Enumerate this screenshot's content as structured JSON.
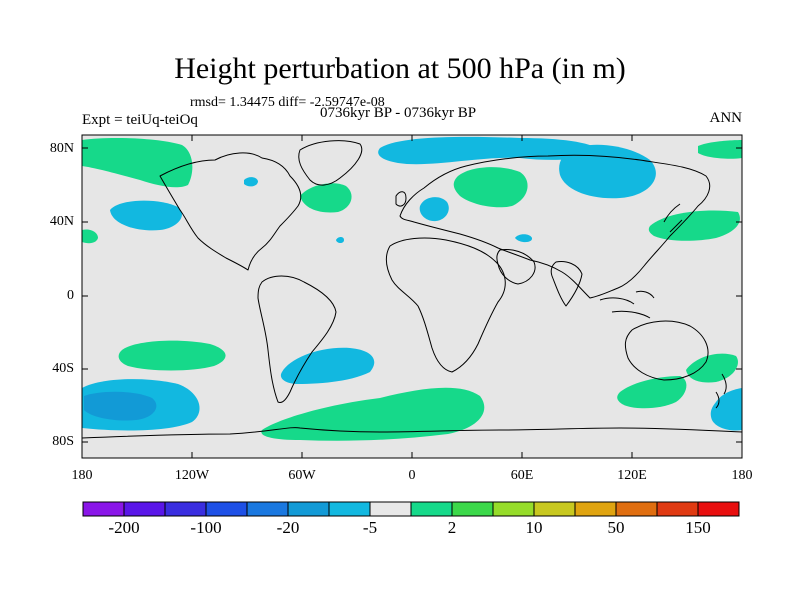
{
  "title": "Height perturbation at 500 hPa (in m)",
  "stats": "rmsd= 1.34475 diff= -2.59747e-08",
  "period": "0736kyr BP - 0736kyr BP",
  "experiment": "Expt = teiUq-teiOq",
  "season": "ANN",
  "y_ticks": [
    "80N",
    "40N",
    "0",
    "40S",
    "80S"
  ],
  "x_ticks": [
    "180",
    "120W",
    "60W",
    "0",
    "60E",
    "120E",
    "180"
  ],
  "colorbar": {
    "colors": [
      "#8a16e8",
      "#5a16e8",
      "#3a2ee0",
      "#1e50e6",
      "#1a78e0",
      "#129ad6",
      "#12b8e0",
      "#e8e8e8",
      "#16d98a",
      "#3cd84a",
      "#96dc2a",
      "#c8c820",
      "#e0a410",
      "#e06e10",
      "#e03a12",
      "#e80e0e"
    ],
    "labels": [
      "-200",
      "-100",
      "-20",
      "-5",
      "2",
      "10",
      "50",
      "150"
    ]
  },
  "colors": {
    "land_background": "#e6e6e6",
    "positive_anomaly": "#16d98a",
    "negative_anomaly": "#12b8e0",
    "strong_negative": "#129ad6"
  }
}
